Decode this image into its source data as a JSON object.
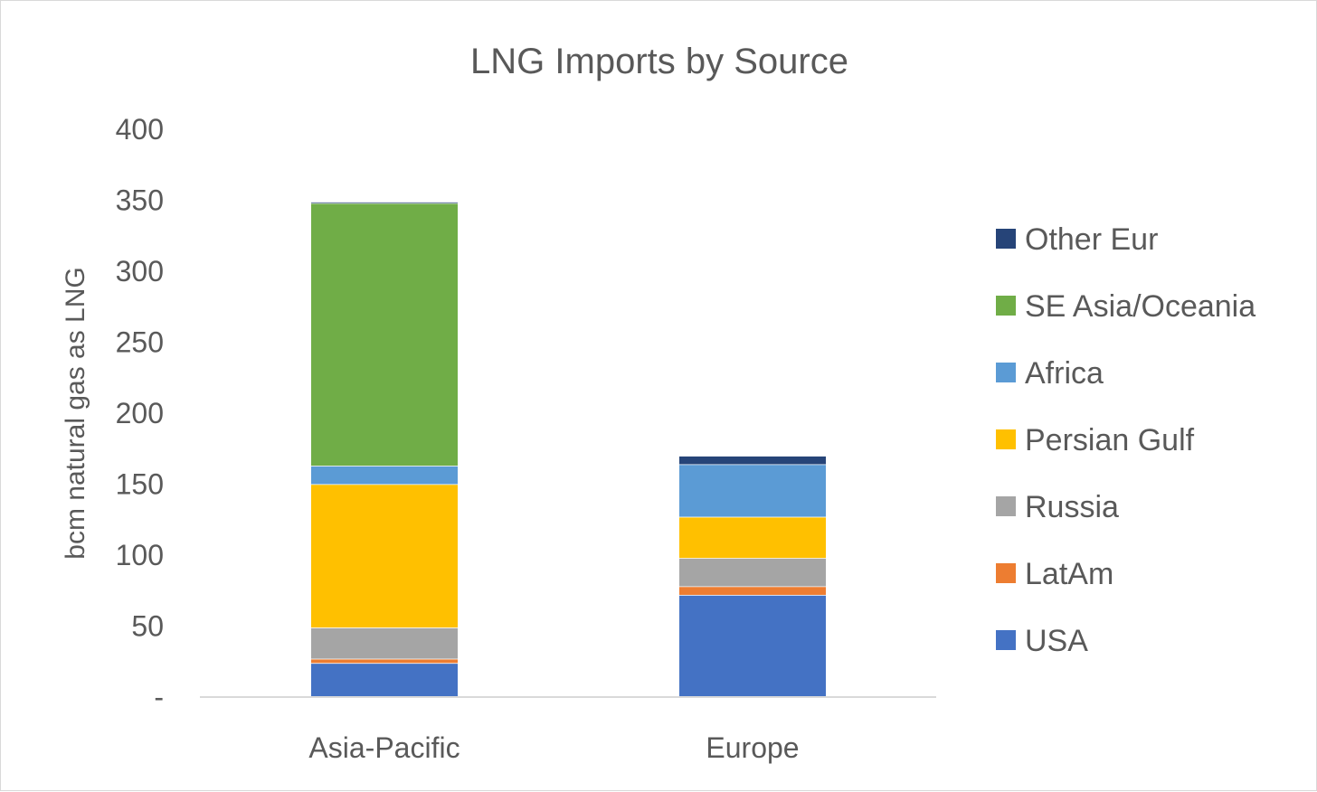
{
  "chart_data": {
    "type": "bar",
    "stacked": true,
    "title": "LNG Imports by Source",
    "ylabel": "bcm natural gas as LNG",
    "xlabel": "",
    "ylim": [
      0,
      400
    ],
    "yticks": [
      0,
      50,
      100,
      150,
      200,
      250,
      300,
      350,
      400
    ],
    "ytick_labels": [
      "-",
      "50",
      "100",
      "150",
      "200",
      "250",
      "300",
      "350",
      "400"
    ],
    "grid": false,
    "legend_position": "right",
    "categories": [
      "Asia-Pacific",
      "Europe"
    ],
    "series": [
      {
        "name": "USA",
        "color": "#4472C4",
        "values": [
          24,
          72
        ]
      },
      {
        "name": "LatAm",
        "color": "#ED7D31",
        "values": [
          3,
          6
        ]
      },
      {
        "name": "Russia",
        "color": "#A5A5A5",
        "values": [
          22,
          20
        ]
      },
      {
        "name": "Persian Gulf",
        "color": "#FFC000",
        "values": [
          101,
          29
        ]
      },
      {
        "name": "Africa",
        "color": "#5B9BD5",
        "values": [
          13,
          37
        ]
      },
      {
        "name": "SE Asia/Oceania",
        "color": "#70AD47",
        "values": [
          185,
          0
        ]
      },
      {
        "name": "Other Eur",
        "color": "#264478",
        "values": [
          1,
          6
        ]
      }
    ]
  }
}
